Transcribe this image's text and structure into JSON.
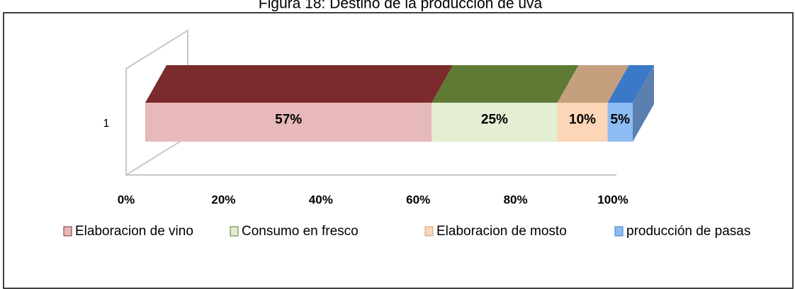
{
  "chart_data": {
    "type": "bar100",
    "orientation": "horizontal",
    "title": "Figura 18: Destino de la producción de uva",
    "categories": [
      "1"
    ],
    "series": [
      {
        "name": "Elaboracion de vino",
        "color": "#e8b9b9",
        "top_color": "#7b2b2b",
        "values": [
          57
        ],
        "value_labels": [
          "57%"
        ]
      },
      {
        "name": "Consumo en fresco",
        "color": "#e3eed3",
        "top_color": "#5e7a34",
        "values": [
          25
        ],
        "value_labels": [
          "25%"
        ]
      },
      {
        "name": "Elaboracion de mosto",
        "color": "#fcd6b6",
        "top_color": "#c4a07e",
        "values": [
          10
        ],
        "value_labels": [
          "10%"
        ]
      },
      {
        "name": "producción de pasas",
        "color": "#8dbcf2",
        "top_color": "#3a78c8",
        "values": [
          5
        ],
        "value_labels": [
          "5%"
        ]
      }
    ],
    "xlim": [
      0,
      100
    ],
    "xticks": [
      {
        "value": 0,
        "label": "0%"
      },
      {
        "value": 20,
        "label": "20%"
      },
      {
        "value": 40,
        "label": "40%"
      },
      {
        "value": 60,
        "label": "60%"
      },
      {
        "value": 80,
        "label": "80%"
      },
      {
        "value": 100,
        "label": "100%"
      }
    ],
    "legend": "bottom"
  }
}
